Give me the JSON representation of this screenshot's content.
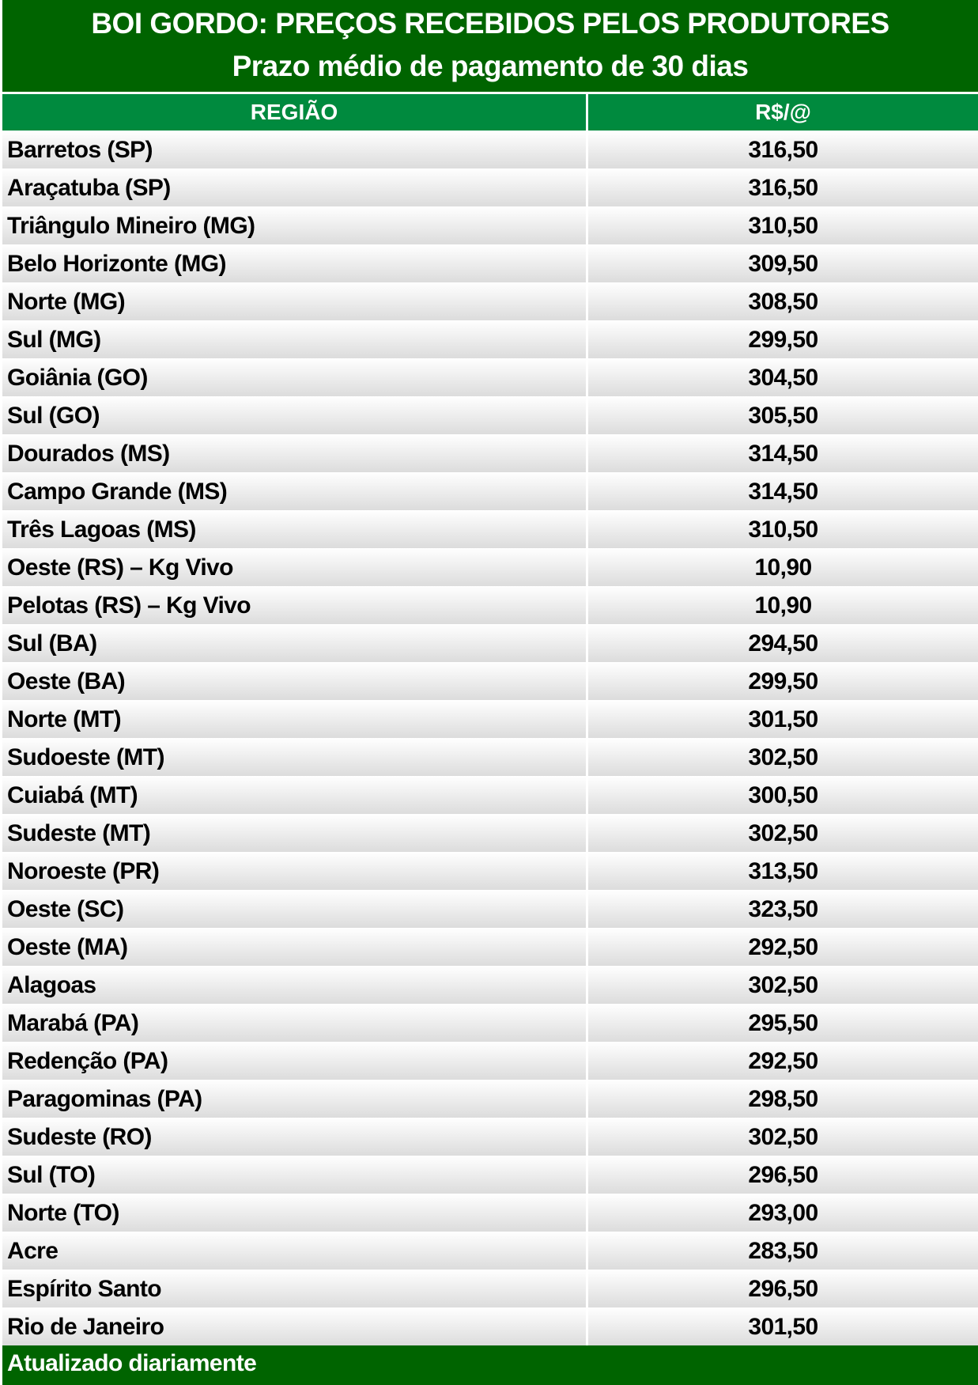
{
  "title": {
    "line1": "BOI GORDO: PREÇOS RECEBIDOS PELOS PRODUTORES",
    "line2": "Prazo médio de pagamento de 30 dias"
  },
  "columns": [
    "REGIÃO",
    "R$/@"
  ],
  "rows": [
    [
      "Barretos (SP)",
      "316,50"
    ],
    [
      "Araçatuba (SP)",
      "316,50"
    ],
    [
      "Triângulo Mineiro (MG)",
      "310,50"
    ],
    [
      "Belo Horizonte (MG)",
      "309,50"
    ],
    [
      "Norte (MG)",
      "308,50"
    ],
    [
      "Sul (MG)",
      "299,50"
    ],
    [
      "Goiânia (GO)",
      "304,50"
    ],
    [
      "Sul (GO)",
      "305,50"
    ],
    [
      "Dourados (MS)",
      "314,50"
    ],
    [
      "Campo Grande (MS)",
      "314,50"
    ],
    [
      "Três Lagoas (MS)",
      "310,50"
    ],
    [
      "Oeste (RS) – Kg Vivo",
      "10,90"
    ],
    [
      "Pelotas (RS) – Kg Vivo",
      "10,90"
    ],
    [
      "Sul (BA)",
      "294,50"
    ],
    [
      "Oeste (BA)",
      "299,50"
    ],
    [
      "Norte (MT)",
      "301,50"
    ],
    [
      "Sudoeste (MT)",
      "302,50"
    ],
    [
      "Cuiabá (MT)",
      "300,50"
    ],
    [
      "Sudeste (MT)",
      "302,50"
    ],
    [
      "Noroeste (PR)",
      "313,50"
    ],
    [
      "Oeste (SC)",
      "323,50"
    ],
    [
      "Oeste (MA)",
      "292,50"
    ],
    [
      "Alagoas",
      "302,50"
    ],
    [
      "Marabá (PA)",
      "295,50"
    ],
    [
      "Redenção (PA)",
      "292,50"
    ],
    [
      "Paragominas (PA)",
      "298,50"
    ],
    [
      "Sudeste (RO)",
      "302,50"
    ],
    [
      "Sul (TO)",
      "296,50"
    ],
    [
      "Norte (TO)",
      "293,00"
    ],
    [
      "Acre",
      "283,50"
    ],
    [
      "Espírito Santo",
      "296,50"
    ],
    [
      "Rio de Janeiro",
      "301,50"
    ]
  ],
  "footer": "Atualizado diariamente",
  "colors": {
    "title_bg": "#006400",
    "header_bg": "#008a3e"
  }
}
